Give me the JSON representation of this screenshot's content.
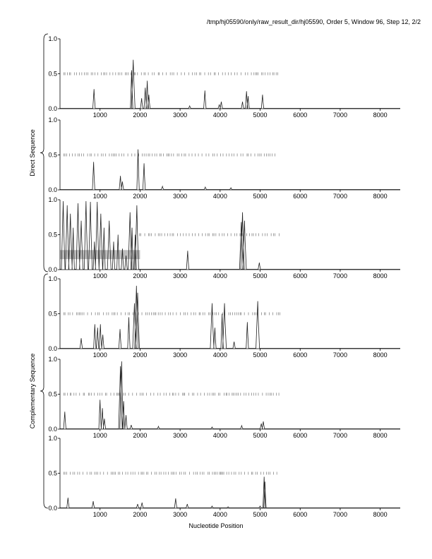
{
  "header": "/tmp/hj05590/only/raw_result_dir/hj05590, Order 5, Window 96, Step 12, 2/2",
  "x_axis_label": "Nucleotide Position",
  "group_labels": [
    "Direct Sequence",
    "Complementary Sequence"
  ],
  "chart_data": {
    "type": "line",
    "xlabel": "Nucleotide Position",
    "ylabel": "",
    "xlim": [
      0,
      8500
    ],
    "ylim": [
      0,
      1
    ],
    "x_ticks": [
      1000,
      2000,
      3000,
      4000,
      5000,
      6000,
      7000,
      8000
    ],
    "y_ticks": [
      0.0,
      0.5,
      1.0
    ],
    "y_tick_labels": [
      "0.0",
      "0.5",
      "1.0"
    ],
    "panels": [
      {
        "group": "Direct Sequence",
        "ticks_range": [
          100,
          5450
        ],
        "peaks": [
          [
            850,
            0.28
          ],
          [
            1790,
            0.55
          ],
          [
            1830,
            0.7
          ],
          [
            2040,
            0.15
          ],
          [
            2130,
            0.3
          ],
          [
            2180,
            0.4
          ],
          [
            2220,
            0.2
          ],
          [
            3240,
            0.04
          ],
          [
            3620,
            0.26
          ],
          [
            3980,
            0.06
          ],
          [
            4030,
            0.1
          ],
          [
            4560,
            0.1
          ],
          [
            4660,
            0.25
          ],
          [
            4700,
            0.18
          ],
          [
            5060,
            0.2
          ]
        ]
      },
      {
        "group": "Direct Sequence",
        "ticks_range": [
          100,
          5450
        ],
        "peaks": [
          [
            840,
            0.4
          ],
          [
            1510,
            0.2
          ],
          [
            1560,
            0.12
          ],
          [
            1950,
            0.58
          ],
          [
            2100,
            0.38
          ],
          [
            2560,
            0.05
          ],
          [
            3630,
            0.04
          ],
          [
            4270,
            0.03
          ]
        ]
      },
      {
        "group": "Direct Sequence",
        "ticks_range": [
          1990,
          5500
        ],
        "shaded": {
          "x": [
            0,
            2000
          ],
          "y": [
            0.15,
            0.28
          ]
        },
        "peaks": [
          [
            80,
            0.98
          ],
          [
            180,
            0.92
          ],
          [
            260,
            0.8
          ],
          [
            330,
            0.6
          ],
          [
            450,
            0.95
          ],
          [
            530,
            0.7
          ],
          [
            650,
            0.98
          ],
          [
            760,
            0.97
          ],
          [
            860,
            0.4
          ],
          [
            930,
            0.97
          ],
          [
            1020,
            0.8
          ],
          [
            1100,
            0.6
          ],
          [
            1230,
            0.7
          ],
          [
            1340,
            0.4
          ],
          [
            1450,
            0.5
          ],
          [
            1560,
            0.3
          ],
          [
            1650,
            0.2
          ],
          [
            1750,
            0.82
          ],
          [
            1800,
            0.6
          ],
          [
            1880,
            0.5
          ],
          [
            1920,
            0.92
          ],
          [
            3190,
            0.27
          ],
          [
            4530,
            0.68
          ],
          [
            4560,
            0.82
          ],
          [
            4610,
            0.7
          ],
          [
            4980,
            0.1
          ]
        ]
      },
      {
        "group": "Complementary Sequence",
        "ticks_range": [
          100,
          5500
        ],
        "peaks": [
          [
            530,
            0.15
          ],
          [
            870,
            0.35
          ],
          [
            940,
            0.3
          ],
          [
            1010,
            0.35
          ],
          [
            1070,
            0.2
          ],
          [
            1500,
            0.28
          ],
          [
            1720,
            0.45
          ],
          [
            1860,
            0.65
          ],
          [
            1910,
            0.9
          ],
          [
            1940,
            0.8
          ],
          [
            3800,
            0.65
          ],
          [
            3870,
            0.3
          ],
          [
            4050,
            0.5
          ],
          [
            4110,
            0.65
          ],
          [
            4350,
            0.1
          ],
          [
            4680,
            0.38
          ],
          [
            4940,
            0.68
          ]
        ]
      },
      {
        "group": "Complementary Sequence",
        "ticks_range": [
          100,
          5500
        ],
        "peaks": [
          [
            120,
            0.25
          ],
          [
            1000,
            0.42
          ],
          [
            1060,
            0.3
          ],
          [
            1110,
            0.15
          ],
          [
            1510,
            0.9
          ],
          [
            1540,
            0.97
          ],
          [
            1590,
            0.4
          ],
          [
            1650,
            0.2
          ],
          [
            1780,
            0.06
          ],
          [
            2460,
            0.04
          ],
          [
            3800,
            0.03
          ],
          [
            4540,
            0.05
          ],
          [
            5030,
            0.08
          ],
          [
            5080,
            0.11
          ]
        ]
      },
      {
        "group": "Complementary Sequence",
        "ticks_range": [
          100,
          5500
        ],
        "peaks": [
          [
            200,
            0.15
          ],
          [
            830,
            0.1
          ],
          [
            1940,
            0.06
          ],
          [
            2050,
            0.08
          ],
          [
            2890,
            0.14
          ],
          [
            3180,
            0.06
          ],
          [
            3800,
            0.03
          ],
          [
            4200,
            0.02
          ],
          [
            5000,
            0.03
          ],
          [
            5100,
            0.45
          ],
          [
            5120,
            0.38
          ]
        ]
      }
    ]
  }
}
